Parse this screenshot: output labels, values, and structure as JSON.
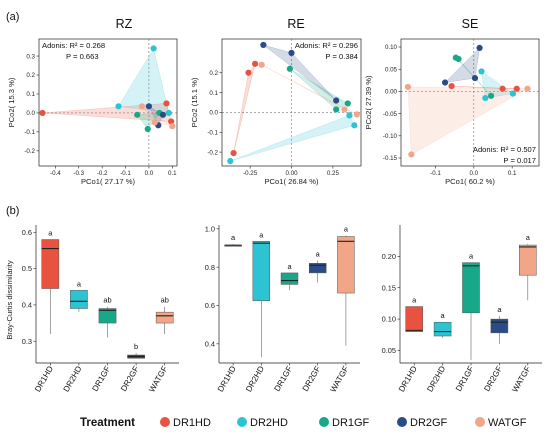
{
  "panel_labels": [
    "(a)",
    "(b)"
  ],
  "colors": {
    "DR1HD": "#e8533f",
    "DR2HD": "#2ec3d3",
    "DR1GF": "#16a889",
    "DR2GF": "#2a4c86",
    "WATGF": "#f2a688"
  },
  "legend": {
    "title": "Treatment",
    "items": [
      {
        "label": "DR1HD",
        "color": "#e8533f"
      },
      {
        "label": "DR2HD",
        "color": "#2ec3d3"
      },
      {
        "label": "DR1GF",
        "color": "#16a889"
      },
      {
        "label": "DR2GF",
        "color": "#2a4c86"
      },
      {
        "label": "WATGF",
        "color": "#f2a688"
      }
    ]
  },
  "chart_data": [
    {
      "type": "scatter",
      "title": "RZ",
      "xlabel": "PCo1( 27.17 %)",
      "ylabel": "PCo2( 15.3 %)",
      "xlim": [
        -0.47,
        0.12
      ],
      "ylim": [
        -0.28,
        0.39
      ],
      "xticks": [
        -0.4,
        -0.3,
        -0.2,
        -0.1,
        0.0,
        0.1
      ],
      "xtick_labels": [
        "-0.4",
        "-0.3",
        "-0.2",
        "-0.1",
        "0.0",
        "0.1"
      ],
      "yticks": [
        -0.2,
        -0.1,
        0.0,
        0.1,
        0.2,
        0.3
      ],
      "ytick_labels": [
        "-0.2",
        "-0.1",
        "0.0",
        "0.1",
        "0.2",
        "0.3"
      ],
      "annotation": {
        "position": "top-left",
        "lines": [
          "Adonis: R² = 0.268",
          "P = 0.663"
        ]
      },
      "series": [
        {
          "name": "DR1HD",
          "points": [
            [
              -0.455,
              0.0
            ],
            [
              0.075,
              0.05
            ],
            [
              0.095,
              -0.045
            ]
          ]
        },
        {
          "name": "DR2HD",
          "points": [
            [
              0.02,
              0.34
            ],
            [
              -0.13,
              0.035
            ],
            [
              0.085,
              0.0
            ]
          ]
        },
        {
          "name": "DR1GF",
          "points": [
            [
              -0.05,
              -0.01
            ],
            [
              -0.005,
              -0.085
            ],
            [
              0.045,
              0.0
            ]
          ]
        },
        {
          "name": "DR2GF",
          "points": [
            [
              0.0,
              0.035
            ],
            [
              0.04,
              -0.065
            ],
            [
              0.06,
              -0.01
            ]
          ]
        },
        {
          "name": "WATGF",
          "points": [
            [
              -0.03,
              0.035
            ],
            [
              0.025,
              -0.05
            ],
            [
              0.1,
              -0.07
            ]
          ]
        }
      ]
    },
    {
      "type": "scatter",
      "title": "RE",
      "xlabel": "PCo1( 26.84 %)",
      "ylabel": "PCo2 (15.1 %)",
      "xlim": [
        -0.42,
        0.42
      ],
      "ylim": [
        -0.27,
        0.37
      ],
      "xticks": [
        -0.25,
        0.0,
        0.25
      ],
      "xtick_labels": [
        "-0.25",
        "0.00",
        "0.25"
      ],
      "yticks": [
        -0.2,
        -0.1,
        0.0,
        0.1,
        0.2
      ],
      "ytick_labels": [
        "-0.2",
        "-0.1",
        "0.0",
        "0.1",
        "0.2"
      ],
      "annotation": {
        "position": "top-right",
        "lines": [
          "Adonis: R² = 0.296",
          "P = 0.384"
        ]
      },
      "series": [
        {
          "name": "DR1HD",
          "points": [
            [
              -0.35,
              -0.205
            ],
            [
              -0.22,
              0.245
            ],
            [
              -0.26,
              0.2
            ]
          ]
        },
        {
          "name": "DR2HD",
          "points": [
            [
              -0.37,
              -0.245
            ],
            [
              0.35,
              -0.015
            ],
            [
              0.38,
              -0.065
            ]
          ]
        },
        {
          "name": "DR1GF",
          "points": [
            [
              -0.01,
              0.22
            ],
            [
              0.27,
              0.015
            ],
            [
              0.34,
              0.045
            ]
          ]
        },
        {
          "name": "DR2GF",
          "points": [
            [
              -0.17,
              0.34
            ],
            [
              0.27,
              0.06
            ],
            [
              0.0,
              0.3
            ]
          ]
        },
        {
          "name": "WATGF",
          "points": [
            [
              -0.18,
              0.24
            ],
            [
              0.395,
              -0.01
            ],
            [
              0.32,
              0.015
            ]
          ]
        }
      ]
    },
    {
      "type": "scatter",
      "title": "SE",
      "xlabel": "PCo1( 60.2 %)",
      "ylabel": "PCo2( 27.39 %)",
      "xlim": [
        -0.19,
        0.17
      ],
      "ylim": [
        -0.168,
        0.118
      ],
      "xticks": [
        -0.1,
        0.0,
        0.1
      ],
      "xtick_labels": [
        "-0.1",
        "0.0",
        "0.1"
      ],
      "yticks": [
        -0.15,
        -0.1,
        -0.05,
        0.0,
        0.05,
        0.1
      ],
      "ytick_labels": [
        "-0.15",
        "-0.10",
        "-0.05",
        "0.00",
        "0.05",
        "0.10"
      ],
      "annotation": {
        "position": "bottom-right",
        "lines": [
          "Adonis: R² = 0.507",
          "P = 0.017"
        ]
      },
      "series": [
        {
          "name": "DR1HD",
          "points": [
            [
              -0.058,
              0.012
            ],
            [
              0.075,
              0.006
            ],
            [
              0.112,
              0.006
            ]
          ]
        },
        {
          "name": "DR2HD",
          "points": [
            [
              0.03,
              -0.015
            ],
            [
              0.102,
              -0.005
            ],
            [
              0.02,
              0.045
            ]
          ]
        },
        {
          "name": "DR1GF",
          "points": [
            [
              -0.047,
              0.076
            ],
            [
              -0.04,
              0.073
            ],
            [
              0.045,
              -0.01
            ]
          ]
        },
        {
          "name": "DR2GF",
          "points": [
            [
              -0.075,
              0.02
            ],
            [
              0.015,
              0.098
            ],
            [
              0.003,
              0.03
            ]
          ]
        },
        {
          "name": "WATGF",
          "points": [
            [
              -0.172,
              0.01
            ],
            [
              -0.163,
              -0.142
            ],
            [
              0.14,
              0.006
            ]
          ]
        }
      ]
    },
    {
      "type": "box",
      "ylabel": "Bray-Curtis dissimilarity",
      "categories": [
        "DR1HD",
        "DR2HD",
        "DR1GF",
        "DR2GF",
        "WATGF"
      ],
      "ylim": [
        0.24,
        0.62
      ],
      "yticks": [
        0.3,
        0.4,
        0.5,
        0.6
      ],
      "ytick_labels": [
        "0.3",
        "0.4",
        "0.5",
        "0.6"
      ],
      "boxes": [
        {
          "name": "DR1HD",
          "min": 0.32,
          "q1": 0.445,
          "median": 0.555,
          "q3": 0.58,
          "max": 0.58,
          "label": "a"
        },
        {
          "name": "DR2HD",
          "min": 0.38,
          "q1": 0.39,
          "median": 0.41,
          "q3": 0.44,
          "max": 0.44,
          "label": "a"
        },
        {
          "name": "DR1GF",
          "min": 0.31,
          "q1": 0.35,
          "median": 0.385,
          "q3": 0.39,
          "max": 0.395,
          "label": "ab"
        },
        {
          "name": "DR2GF",
          "min": 0.253,
          "q1": 0.253,
          "median": 0.258,
          "q3": 0.262,
          "max": 0.268,
          "label": "b"
        },
        {
          "name": "WATGF",
          "min": 0.32,
          "q1": 0.35,
          "median": 0.37,
          "q3": 0.38,
          "max": 0.395,
          "label": "ab"
        }
      ]
    },
    {
      "type": "box",
      "ylabel": "",
      "categories": [
        "DR1HD",
        "DR2HD",
        "DR1GF",
        "DR2GF",
        "WATGF"
      ],
      "ylim": [
        0.3,
        1.02
      ],
      "yticks": [
        0.4,
        0.6,
        0.8,
        1.0
      ],
      "ytick_labels": [
        "0.4",
        "0.6",
        "0.8",
        "1.0"
      ],
      "boxes": [
        {
          "name": "DR1HD",
          "min": 0.91,
          "q1": 0.91,
          "median": 0.915,
          "q3": 0.915,
          "max": 0.92,
          "label": "a"
        },
        {
          "name": "DR2HD",
          "min": 0.33,
          "q1": 0.625,
          "median": 0.925,
          "q3": 0.935,
          "max": 0.935,
          "label": "a"
        },
        {
          "name": "DR1GF",
          "min": 0.68,
          "q1": 0.71,
          "median": 0.73,
          "q3": 0.77,
          "max": 0.77,
          "label": "a"
        },
        {
          "name": "DR2GF",
          "min": 0.72,
          "q1": 0.77,
          "median": 0.81,
          "q3": 0.82,
          "max": 0.835,
          "label": "a"
        },
        {
          "name": "WATGF",
          "min": 0.39,
          "q1": 0.665,
          "median": 0.935,
          "q3": 0.96,
          "max": 0.965,
          "label": "a"
        }
      ]
    },
    {
      "type": "box",
      "ylabel": "",
      "categories": [
        "DR1HD",
        "DR2HD",
        "DR1GF",
        "DR2GF",
        "WATGF"
      ],
      "ylim": [
        0.03,
        0.25
      ],
      "yticks": [
        0.05,
        0.1,
        0.15,
        0.2
      ],
      "ytick_labels": [
        "0.05",
        "0.10",
        "0.15",
        "0.20"
      ],
      "boxes": [
        {
          "name": "DR1HD",
          "min": 0.08,
          "q1": 0.08,
          "median": 0.082,
          "q3": 0.12,
          "max": 0.12,
          "label": "a"
        },
        {
          "name": "DR2HD",
          "min": 0.07,
          "q1": 0.073,
          "median": 0.08,
          "q3": 0.095,
          "max": 0.095,
          "label": "a"
        },
        {
          "name": "DR1GF",
          "min": 0.035,
          "q1": 0.11,
          "median": 0.185,
          "q3": 0.19,
          "max": 0.19,
          "label": "a"
        },
        {
          "name": "DR2GF",
          "min": 0.06,
          "q1": 0.078,
          "median": 0.095,
          "q3": 0.1,
          "max": 0.105,
          "label": "a"
        },
        {
          "name": "WATGF",
          "min": 0.13,
          "q1": 0.17,
          "median": 0.215,
          "q3": 0.218,
          "max": 0.22,
          "label": "a"
        }
      ]
    }
  ]
}
